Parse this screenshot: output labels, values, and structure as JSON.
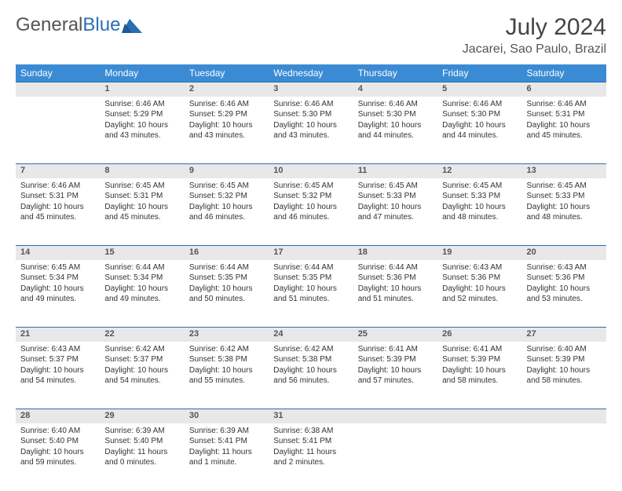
{
  "brand": {
    "part1": "General",
    "part2": "Blue"
  },
  "header": {
    "title": "July 2024",
    "location": "Jacarei, Sao Paulo, Brazil"
  },
  "colors": {
    "header_bg": "#3b8bd4",
    "header_text": "#ffffff",
    "daynum_bg": "#e8e8e8",
    "daynum_border_top": "#2a6fb5",
    "logo_blue": "#2a6fb5",
    "text": "#333333"
  },
  "weekdays": [
    "Sunday",
    "Monday",
    "Tuesday",
    "Wednesday",
    "Thursday",
    "Friday",
    "Saturday"
  ],
  "weeks": [
    [
      null,
      {
        "n": "1",
        "sr": "6:46 AM",
        "ss": "5:29 PM",
        "dl": "10 hours and 43 minutes."
      },
      {
        "n": "2",
        "sr": "6:46 AM",
        "ss": "5:29 PM",
        "dl": "10 hours and 43 minutes."
      },
      {
        "n": "3",
        "sr": "6:46 AM",
        "ss": "5:30 PM",
        "dl": "10 hours and 43 minutes."
      },
      {
        "n": "4",
        "sr": "6:46 AM",
        "ss": "5:30 PM",
        "dl": "10 hours and 44 minutes."
      },
      {
        "n": "5",
        "sr": "6:46 AM",
        "ss": "5:30 PM",
        "dl": "10 hours and 44 minutes."
      },
      {
        "n": "6",
        "sr": "6:46 AM",
        "ss": "5:31 PM",
        "dl": "10 hours and 45 minutes."
      }
    ],
    [
      {
        "n": "7",
        "sr": "6:46 AM",
        "ss": "5:31 PM",
        "dl": "10 hours and 45 minutes."
      },
      {
        "n": "8",
        "sr": "6:45 AM",
        "ss": "5:31 PM",
        "dl": "10 hours and 45 minutes."
      },
      {
        "n": "9",
        "sr": "6:45 AM",
        "ss": "5:32 PM",
        "dl": "10 hours and 46 minutes."
      },
      {
        "n": "10",
        "sr": "6:45 AM",
        "ss": "5:32 PM",
        "dl": "10 hours and 46 minutes."
      },
      {
        "n": "11",
        "sr": "6:45 AM",
        "ss": "5:33 PM",
        "dl": "10 hours and 47 minutes."
      },
      {
        "n": "12",
        "sr": "6:45 AM",
        "ss": "5:33 PM",
        "dl": "10 hours and 48 minutes."
      },
      {
        "n": "13",
        "sr": "6:45 AM",
        "ss": "5:33 PM",
        "dl": "10 hours and 48 minutes."
      }
    ],
    [
      {
        "n": "14",
        "sr": "6:45 AM",
        "ss": "5:34 PM",
        "dl": "10 hours and 49 minutes."
      },
      {
        "n": "15",
        "sr": "6:44 AM",
        "ss": "5:34 PM",
        "dl": "10 hours and 49 minutes."
      },
      {
        "n": "16",
        "sr": "6:44 AM",
        "ss": "5:35 PM",
        "dl": "10 hours and 50 minutes."
      },
      {
        "n": "17",
        "sr": "6:44 AM",
        "ss": "5:35 PM",
        "dl": "10 hours and 51 minutes."
      },
      {
        "n": "18",
        "sr": "6:44 AM",
        "ss": "5:36 PM",
        "dl": "10 hours and 51 minutes."
      },
      {
        "n": "19",
        "sr": "6:43 AM",
        "ss": "5:36 PM",
        "dl": "10 hours and 52 minutes."
      },
      {
        "n": "20",
        "sr": "6:43 AM",
        "ss": "5:36 PM",
        "dl": "10 hours and 53 minutes."
      }
    ],
    [
      {
        "n": "21",
        "sr": "6:43 AM",
        "ss": "5:37 PM",
        "dl": "10 hours and 54 minutes."
      },
      {
        "n": "22",
        "sr": "6:42 AM",
        "ss": "5:37 PM",
        "dl": "10 hours and 54 minutes."
      },
      {
        "n": "23",
        "sr": "6:42 AM",
        "ss": "5:38 PM",
        "dl": "10 hours and 55 minutes."
      },
      {
        "n": "24",
        "sr": "6:42 AM",
        "ss": "5:38 PM",
        "dl": "10 hours and 56 minutes."
      },
      {
        "n": "25",
        "sr": "6:41 AM",
        "ss": "5:39 PM",
        "dl": "10 hours and 57 minutes."
      },
      {
        "n": "26",
        "sr": "6:41 AM",
        "ss": "5:39 PM",
        "dl": "10 hours and 58 minutes."
      },
      {
        "n": "27",
        "sr": "6:40 AM",
        "ss": "5:39 PM",
        "dl": "10 hours and 58 minutes."
      }
    ],
    [
      {
        "n": "28",
        "sr": "6:40 AM",
        "ss": "5:40 PM",
        "dl": "10 hours and 59 minutes."
      },
      {
        "n": "29",
        "sr": "6:39 AM",
        "ss": "5:40 PM",
        "dl": "11 hours and 0 minutes."
      },
      {
        "n": "30",
        "sr": "6:39 AM",
        "ss": "5:41 PM",
        "dl": "11 hours and 1 minute."
      },
      {
        "n": "31",
        "sr": "6:38 AM",
        "ss": "5:41 PM",
        "dl": "11 hours and 2 minutes."
      },
      null,
      null,
      null
    ]
  ],
  "labels": {
    "sunrise": "Sunrise: ",
    "sunset": "Sunset: ",
    "daylight": "Daylight: "
  }
}
